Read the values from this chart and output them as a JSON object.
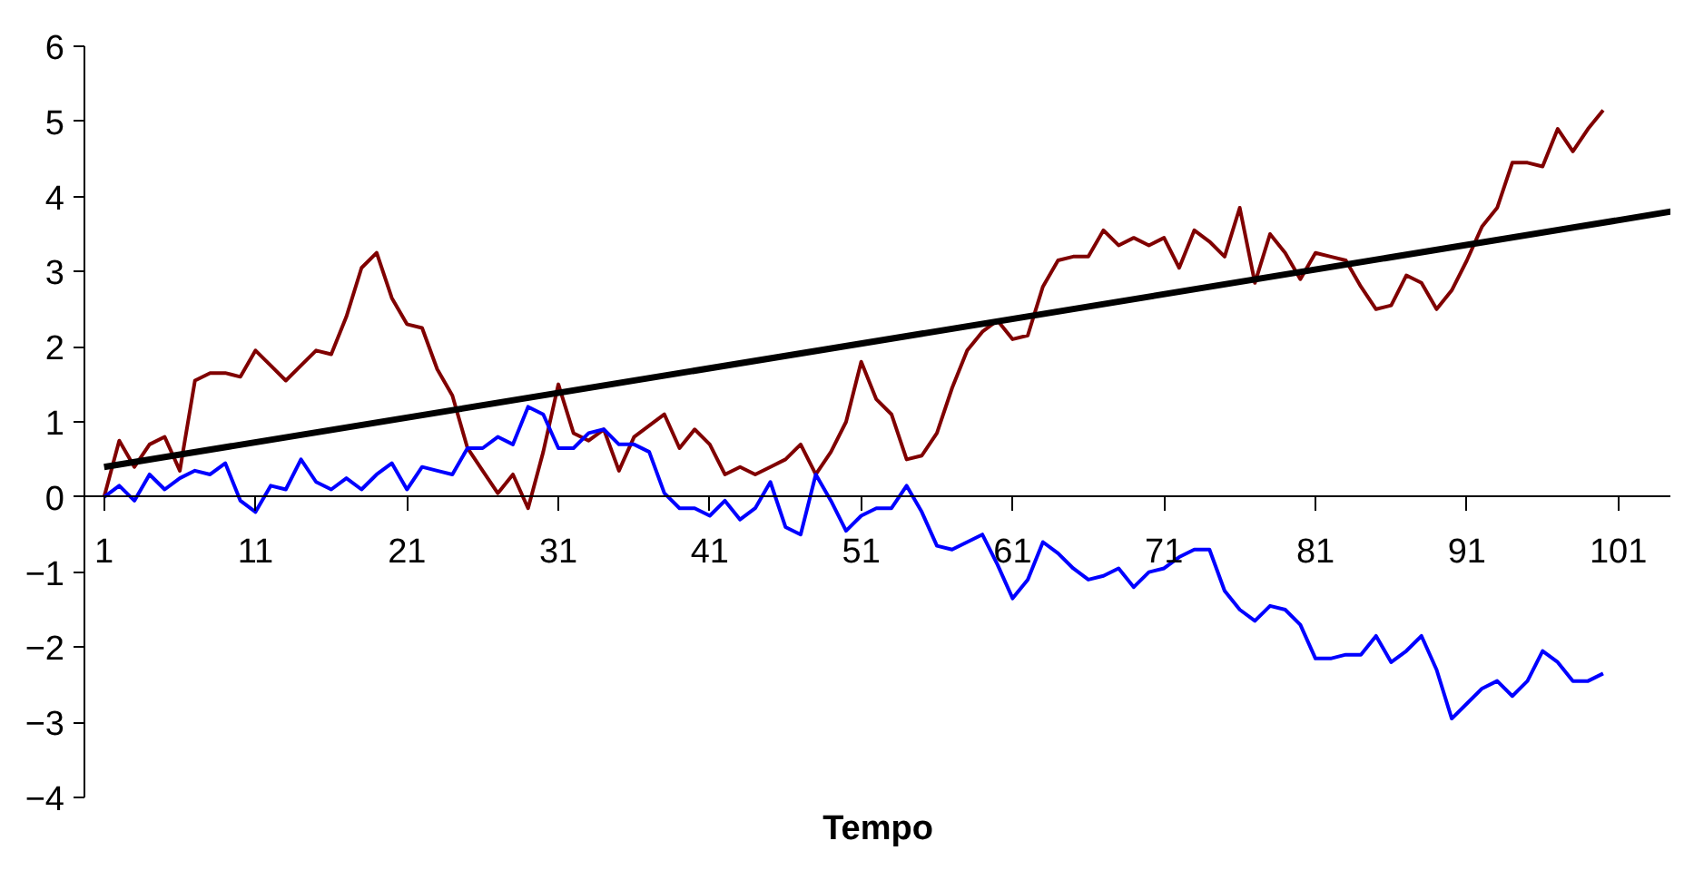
{
  "chart_data": {
    "type": "line",
    "xlabel": "Tempo",
    "xlim": [
      -0.3,
      104.5
    ],
    "xticks": [
      1,
      11,
      21,
      31,
      41,
      51,
      61,
      71,
      81,
      91,
      101
    ],
    "ylim": [
      -4,
      6
    ],
    "yticks": [
      -4,
      -3,
      -2,
      -1,
      0,
      1,
      2,
      3,
      4,
      5,
      6
    ],
    "grid": false,
    "marker": "none",
    "line_style": "solid",
    "x": [
      1,
      2,
      3,
      4,
      5,
      6,
      7,
      8,
      9,
      10,
      11,
      12,
      13,
      14,
      15,
      16,
      17,
      18,
      19,
      20,
      21,
      22,
      23,
      24,
      25,
      26,
      27,
      28,
      29,
      30,
      31,
      32,
      33,
      34,
      35,
      36,
      37,
      38,
      39,
      40,
      41,
      42,
      43,
      44,
      45,
      46,
      47,
      48,
      49,
      50,
      51,
      52,
      53,
      54,
      55,
      56,
      57,
      58,
      59,
      60,
      61,
      62,
      63,
      64,
      65,
      66,
      67,
      68,
      69,
      70,
      71,
      72,
      73,
      74,
      75,
      76,
      77,
      78,
      79,
      80,
      81,
      82,
      83,
      84,
      85,
      86,
      87,
      88,
      89,
      90,
      91,
      92,
      93,
      94,
      95,
      96,
      97,
      98,
      99,
      100
    ],
    "series": [
      {
        "color": "#800000",
        "values": [
          0,
          0.75,
          0.4,
          0.7,
          0.8,
          0.35,
          1.55,
          1.65,
          1.65,
          1.6,
          1.95,
          1.75,
          1.55,
          1.75,
          1.95,
          1.9,
          2.4,
          3.05,
          3.25,
          2.65,
          2.3,
          2.25,
          1.7,
          1.35,
          0.65,
          0.35,
          0.05,
          0.3,
          -0.15,
          0.6,
          1.5,
          0.85,
          0.75,
          0.9,
          0.35,
          0.8,
          0.95,
          1.1,
          0.65,
          0.9,
          0.7,
          0.3,
          0.4,
          0.3,
          0.4,
          0.5,
          0.7,
          0.3,
          0.6,
          1.0,
          1.8,
          1.3,
          1.1,
          0.5,
          0.55,
          0.85,
          1.45,
          1.95,
          2.2,
          2.35,
          2.1,
          2.15,
          2.8,
          3.15,
          3.2,
          3.2,
          3.55,
          3.35,
          3.45,
          3.35,
          3.45,
          3.05,
          3.55,
          3.4,
          3.2,
          3.85,
          2.85,
          3.5,
          3.25,
          2.9,
          3.25,
          3.2,
          3.15,
          2.8,
          2.5,
          2.55,
          2.95,
          2.85,
          2.5,
          2.75,
          3.15,
          3.6,
          3.85,
          4.45,
          4.45,
          4.4,
          4.9,
          4.6,
          4.9,
          5.15
        ]
      },
      {
        "color": "#0000ff",
        "values": [
          0,
          0.15,
          -0.05,
          0.3,
          0.1,
          0.25,
          0.35,
          0.3,
          0.45,
          -0.05,
          -0.2,
          0.15,
          0.1,
          0.5,
          0.2,
          0.1,
          0.25,
          0.1,
          0.3,
          0.45,
          0.1,
          0.4,
          0.35,
          0.3,
          0.65,
          0.65,
          0.8,
          0.7,
          1.2,
          1.1,
          0.65,
          0.65,
          0.85,
          0.9,
          0.7,
          0.7,
          0.6,
          0.05,
          -0.15,
          -0.15,
          -0.25,
          -0.05,
          -0.3,
          -0.15,
          0.2,
          -0.4,
          -0.5,
          0.3,
          -0.05,
          -0.45,
          -0.25,
          -0.15,
          -0.15,
          0.15,
          -0.2,
          -0.65,
          -0.7,
          -0.6,
          -0.5,
          -0.9,
          -1.35,
          -1.1,
          -0.6,
          -0.75,
          -0.95,
          -1.1,
          -1.05,
          -0.95,
          -1.2,
          -1.0,
          -0.95,
          -0.8,
          -0.7,
          -0.7,
          -1.25,
          -1.5,
          -1.65,
          -1.45,
          -1.5,
          -1.7,
          -2.15,
          -2.15,
          -2.1,
          -2.1,
          -1.85,
          -2.2,
          -2.05,
          -1.85,
          -2.3,
          -2.95,
          -2.75,
          -2.55,
          -2.45,
          -2.65,
          -2.45,
          -2.05,
          -2.2,
          -2.45,
          -2.45,
          -2.35
        ]
      },
      {
        "color": "#000000",
        "x": [
          1,
          104.5
        ],
        "values": [
          0.4,
          3.8
        ]
      }
    ]
  }
}
